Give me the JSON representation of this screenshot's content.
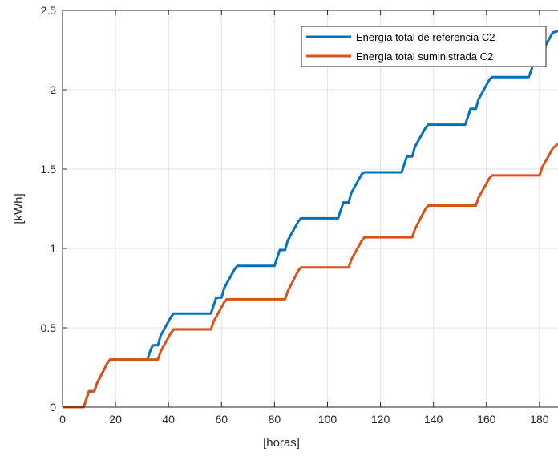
{
  "chart_data": {
    "type": "line",
    "xlabel": "[horas]",
    "ylabel": "[kWh]",
    "xlim": [
      0,
      187
    ],
    "ylim": [
      0,
      2.5
    ],
    "xticks": [
      0,
      20,
      40,
      60,
      80,
      100,
      120,
      140,
      160,
      180
    ],
    "yticks": [
      0,
      0.5,
      1,
      1.5,
      2,
      2.5
    ],
    "ytick_labels": [
      "0",
      "0.5",
      "1",
      "1.5",
      "2",
      "2.5"
    ],
    "grid": true,
    "legend_position": "top-right",
    "series": [
      {
        "name": "Energía total de referencia C2",
        "color": "#0072BD",
        "x": [
          0,
          8,
          9,
          10,
          12,
          13,
          17,
          18,
          32,
          33,
          34,
          36,
          37,
          41,
          42,
          56,
          57,
          58,
          60,
          61,
          65,
          66,
          80,
          81,
          82,
          84,
          85,
          89,
          90,
          104,
          105,
          106,
          108,
          109,
          113,
          114,
          128,
          129,
          130,
          132,
          133,
          137,
          138,
          152,
          153,
          154,
          156,
          157,
          161,
          162,
          176,
          177,
          178,
          180,
          181,
          185,
          187
        ],
        "y": [
          0,
          0,
          0.05,
          0.1,
          0.1,
          0.15,
          0.28,
          0.3,
          0.3,
          0.35,
          0.39,
          0.39,
          0.45,
          0.57,
          0.59,
          0.59,
          0.64,
          0.69,
          0.69,
          0.75,
          0.87,
          0.89,
          0.89,
          0.94,
          0.99,
          0.99,
          1.05,
          1.17,
          1.19,
          1.19,
          1.24,
          1.29,
          1.29,
          1.35,
          1.47,
          1.48,
          1.48,
          1.53,
          1.58,
          1.58,
          1.64,
          1.76,
          1.78,
          1.78,
          1.83,
          1.88,
          1.88,
          1.94,
          2.06,
          2.08,
          2.08,
          2.13,
          2.18,
          2.18,
          2.24,
          2.36,
          2.37
        ]
      },
      {
        "name": "Energía total suministrada C2",
        "color": "#D95319",
        "x": [
          0,
          8,
          9,
          10,
          12,
          13,
          17,
          18,
          36,
          37,
          41,
          42,
          56,
          57,
          61,
          62,
          66,
          67,
          84,
          85,
          89,
          90,
          108,
          109,
          113,
          114,
          132,
          133,
          137,
          138,
          156,
          157,
          161,
          162,
          180,
          181,
          185,
          187
        ],
        "y": [
          0,
          0,
          0.05,
          0.1,
          0.1,
          0.15,
          0.28,
          0.3,
          0.3,
          0.35,
          0.47,
          0.49,
          0.49,
          0.54,
          0.66,
          0.68,
          0.68,
          0.68,
          0.68,
          0.73,
          0.86,
          0.88,
          0.88,
          0.93,
          1.05,
          1.07,
          1.07,
          1.12,
          1.25,
          1.27,
          1.27,
          1.32,
          1.44,
          1.46,
          1.46,
          1.51,
          1.63,
          1.66
        ]
      }
    ]
  }
}
